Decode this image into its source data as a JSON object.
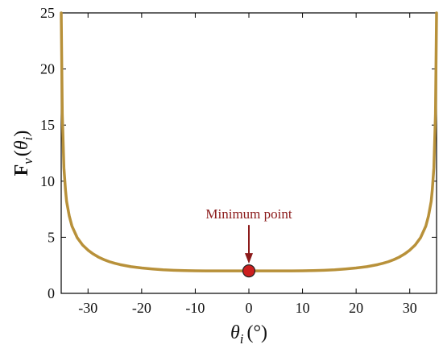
{
  "chart_data": {
    "type": "line",
    "xlim": [
      -35,
      35
    ],
    "ylim": [
      0,
      25
    ],
    "x_ticks": [
      -30,
      -20,
      -10,
      0,
      10,
      20,
      30
    ],
    "x_tick_labels": [
      "-30",
      "-20",
      "-10",
      "0",
      "10",
      "20",
      "30"
    ],
    "y_ticks": [
      0,
      5,
      10,
      15,
      20,
      25
    ],
    "y_tick_labels": [
      "0",
      "5",
      "10",
      "15",
      "20",
      "25"
    ],
    "ylabel": {
      "base": "F",
      "sub": "v",
      "paren_open": "(",
      "arg": "θ",
      "arg_sub": "i",
      "paren_close": ")"
    },
    "xlabel": {
      "symbol": "θ",
      "sub": "i",
      "unit": "(°)"
    },
    "grid": false,
    "series": [
      {
        "x": [
          -35,
          -34.8,
          -34.5,
          -34.2,
          -34,
          -33.5,
          -33,
          -32,
          -31,
          -30,
          -29,
          -28,
          -27,
          -26,
          -25,
          -24,
          -22,
          -20,
          -18,
          -16,
          -14,
          -12,
          -10,
          -8,
          -6,
          -4,
          -2,
          0,
          2,
          4,
          6,
          8,
          10,
          12,
          14,
          16,
          18,
          20,
          22,
          24,
          25,
          26,
          27,
          28,
          29,
          30,
          31,
          32,
          33,
          33.5,
          34,
          34.2,
          34.5,
          34.8,
          35
        ],
        "y": [
          25,
          16,
          11.2,
          9.2,
          8.2,
          6.9,
          6.0,
          4.95,
          4.3,
          3.85,
          3.5,
          3.22,
          3.0,
          2.82,
          2.68,
          2.56,
          2.38,
          2.26,
          2.17,
          2.1,
          2.06,
          2.03,
          2.01,
          2.0,
          2.0,
          2.0,
          2.0,
          2.0,
          2.0,
          2.0,
          2.0,
          2.0,
          2.01,
          2.03,
          2.06,
          2.1,
          2.17,
          2.26,
          2.38,
          2.56,
          2.68,
          2.82,
          3.0,
          3.22,
          3.5,
          3.85,
          4.3,
          4.95,
          6.0,
          6.9,
          8.2,
          9.2,
          11.2,
          16,
          25
        ],
        "color": "#b8913a"
      }
    ],
    "annotations": [
      {
        "text": "Minimum point",
        "x": 0,
        "y": 2,
        "color": "#8b1a1a",
        "marker_color": "#cc1f1f"
      }
    ]
  }
}
